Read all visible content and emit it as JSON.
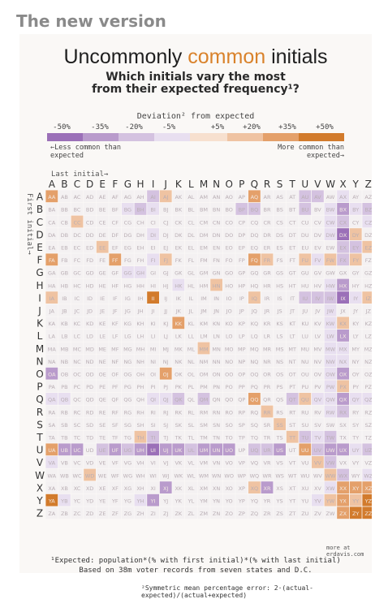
{
  "header": "The new version",
  "title": {
    "pre": "Uncommonly ",
    "highlight": "common",
    "post": " initials"
  },
  "subtitle": [
    "Which initials vary the most",
    "from their expected frequency¹?"
  ],
  "legend": {
    "title": "Deviation² from expected",
    "labels": [
      "-50%",
      "-35%",
      "-20%",
      "-5%",
      "+5%",
      "+20%",
      "+35%",
      "+50%"
    ],
    "less": "←Less common than expected",
    "more": "More common than expected→",
    "colors": [
      "#9b70b8",
      "#b99bcc",
      "#d4c2e0",
      "#e8dff0",
      "#f7e0cf",
      "#efc3a2",
      "#e4a06a",
      "#d27b2c"
    ]
  },
  "axis": {
    "x_title": "Last initial→",
    "y_title": "First initial→",
    "letters": [
      "A",
      "B",
      "C",
      "D",
      "E",
      "F",
      "G",
      "H",
      "I",
      "J",
      "K",
      "L",
      "M",
      "N",
      "O",
      "P",
      "Q",
      "R",
      "S",
      "T",
      "U",
      "V",
      "W",
      "X",
      "Y",
      "Z"
    ]
  },
  "chart_data": {
    "type": "heatmap",
    "title": "Uncommonly common initials",
    "subtitle": "Which initials vary the most from their expected frequency¹?",
    "xlabel": "Last initial",
    "ylabel": "First initial",
    "rows": [
      "A",
      "B",
      "C",
      "D",
      "E",
      "F",
      "G",
      "H",
      "I",
      "J",
      "K",
      "L",
      "M",
      "N",
      "O",
      "P",
      "Q",
      "R",
      "S",
      "T",
      "U",
      "V",
      "W",
      "X",
      "Y",
      "Z"
    ],
    "cols": [
      "A",
      "B",
      "C",
      "D",
      "E",
      "F",
      "G",
      "H",
      "I",
      "J",
      "K",
      "L",
      "M",
      "N",
      "O",
      "P",
      "Q",
      "R",
      "S",
      "T",
      "U",
      "V",
      "W",
      "X",
      "Y",
      "Z"
    ],
    "scale": [
      "-50%",
      "-35%",
      "-20%",
      "-5%",
      "+5%",
      "+20%",
      "+35%",
      "+50%"
    ],
    "values": [
      [
        3,
        0,
        0,
        0,
        0,
        0,
        0,
        0,
        -2,
        2,
        0,
        0,
        0,
        0,
        0,
        0,
        3,
        0,
        0,
        0,
        -2,
        -2,
        0,
        -1,
        0,
        0
      ],
      [
        0,
        0,
        0,
        0,
        0,
        0,
        -1,
        -2,
        -1,
        0,
        0,
        0,
        0,
        0,
        0,
        -2,
        -2,
        0,
        0,
        0,
        -2,
        0,
        -1,
        -3,
        -1,
        -2
      ],
      [
        0,
        0,
        2,
        0,
        0,
        0,
        0,
        0,
        0,
        0,
        0,
        0,
        0,
        0,
        0,
        0,
        0,
        0,
        0,
        0,
        0,
        0,
        -1,
        -2,
        0,
        -1
      ],
      [
        0,
        0,
        0,
        0,
        0,
        0,
        0,
        0,
        -1,
        0,
        0,
        0,
        0,
        0,
        0,
        0,
        0,
        0,
        0,
        0,
        0,
        0,
        -1,
        -4,
        2,
        0
      ],
      [
        0,
        0,
        0,
        0,
        2,
        0,
        0,
        0,
        0,
        0,
        0,
        0,
        0,
        0,
        0,
        0,
        0,
        0,
        0,
        0,
        0,
        0,
        0,
        -2,
        -2,
        2
      ],
      [
        3,
        0,
        0,
        0,
        0,
        3,
        0,
        0,
        -1,
        2,
        0,
        0,
        0,
        0,
        0,
        0,
        3,
        2,
        0,
        0,
        2,
        -1,
        2,
        -2,
        2,
        0
      ],
      [
        0,
        0,
        0,
        0,
        0,
        0,
        -1,
        -1,
        0,
        0,
        0,
        0,
        0,
        0,
        0,
        0,
        0,
        0,
        0,
        0,
        0,
        0,
        0,
        0,
        0,
        0
      ],
      [
        0,
        0,
        0,
        0,
        0,
        0,
        0,
        0,
        0,
        0,
        -1,
        0,
        0,
        2,
        0,
        0,
        0,
        0,
        0,
        0,
        0,
        0,
        -1,
        -3,
        0,
        0
      ],
      [
        2,
        0,
        0,
        0,
        0,
        0,
        0,
        0,
        4,
        0,
        0,
        0,
        0,
        0,
        0,
        0,
        2,
        0,
        0,
        0,
        -2,
        -2,
        -2,
        -4,
        -1,
        2
      ],
      [
        0,
        0,
        0,
        0,
        0,
        0,
        0,
        0,
        0,
        0,
        0,
        0,
        0,
        0,
        0,
        0,
        0,
        0,
        0,
        0,
        0,
        0,
        -1,
        0,
        0,
        0
      ],
      [
        0,
        0,
        0,
        0,
        0,
        0,
        0,
        0,
        0,
        0,
        3,
        0,
        0,
        0,
        0,
        0,
        0,
        0,
        0,
        0,
        0,
        0,
        -1,
        2,
        0,
        0
      ],
      [
        0,
        0,
        0,
        0,
        0,
        0,
        0,
        0,
        0,
        0,
        0,
        0,
        0,
        0,
        0,
        0,
        0,
        0,
        0,
        0,
        0,
        0,
        -1,
        -3,
        0,
        0
      ],
      [
        0,
        0,
        0,
        0,
        0,
        0,
        0,
        0,
        0,
        0,
        0,
        0,
        2,
        0,
        0,
        0,
        0,
        0,
        0,
        0,
        0,
        0,
        -1,
        -1,
        0,
        0
      ],
      [
        0,
        0,
        0,
        0,
        0,
        0,
        0,
        0,
        0,
        0,
        0,
        0,
        0,
        0,
        0,
        0,
        0,
        0,
        0,
        0,
        0,
        0,
        -1,
        -1,
        0,
        0
      ],
      [
        -3,
        0,
        0,
        0,
        0,
        0,
        0,
        0,
        0,
        3,
        0,
        0,
        0,
        0,
        0,
        0,
        0,
        0,
        0,
        0,
        0,
        0,
        -1,
        -3,
        0,
        0
      ],
      [
        0,
        0,
        0,
        0,
        0,
        0,
        0,
        0,
        0,
        0,
        0,
        0,
        0,
        0,
        0,
        0,
        0,
        0,
        0,
        0,
        0,
        0,
        -1,
        2,
        0,
        0
      ],
      [
        -1,
        -1,
        0,
        0,
        0,
        0,
        0,
        0,
        -1,
        -1,
        -2,
        0,
        -2,
        0,
        0,
        0,
        3,
        0,
        0,
        -2,
        2,
        -1,
        -1,
        -3,
        -1,
        -1
      ],
      [
        0,
        0,
        0,
        0,
        0,
        0,
        0,
        0,
        0,
        0,
        0,
        0,
        0,
        0,
        0,
        0,
        0,
        2,
        0,
        0,
        0,
        0,
        -1,
        -2,
        0,
        0
      ],
      [
        0,
        0,
        0,
        0,
        0,
        0,
        0,
        0,
        0,
        0,
        0,
        0,
        0,
        0,
        0,
        0,
        0,
        0,
        2,
        0,
        0,
        0,
        0,
        0,
        0,
        0
      ],
      [
        0,
        0,
        0,
        0,
        0,
        0,
        0,
        2,
        -2,
        0,
        0,
        0,
        0,
        0,
        0,
        0,
        0,
        0,
        0,
        2,
        -2,
        -1,
        -2,
        0,
        0,
        0
      ],
      [
        3,
        -3,
        -3,
        0,
        -2,
        -3,
        -2,
        -3,
        -4,
        -3,
        -3,
        -2,
        -3,
        -3,
        -3,
        0,
        -2,
        -2,
        -3,
        0,
        3,
        -2,
        -3,
        -3,
        -1,
        -2
      ],
      [
        -1,
        0,
        0,
        0,
        0,
        0,
        0,
        0,
        0,
        0,
        0,
        0,
        0,
        0,
        0,
        0,
        0,
        0,
        0,
        0,
        0,
        2,
        -2,
        0,
        0,
        0
      ],
      [
        0,
        0,
        0,
        2,
        0,
        0,
        0,
        0,
        0,
        0,
        0,
        0,
        0,
        0,
        0,
        0,
        0,
        0,
        0,
        0,
        0,
        0,
        2,
        -2,
        0,
        -1
      ],
      [
        0,
        0,
        0,
        0,
        0,
        0,
        0,
        0,
        0,
        -3,
        0,
        0,
        0,
        0,
        0,
        0,
        2,
        -3,
        0,
        0,
        0,
        0,
        -1,
        3,
        3,
        3
      ],
      [
        4,
        -1,
        0,
        0,
        0,
        0,
        0,
        -1,
        -3,
        0,
        0,
        0,
        0,
        0,
        0,
        0,
        0,
        0,
        0,
        0,
        0,
        -1,
        2,
        3,
        2,
        4
      ],
      [
        0,
        0,
        0,
        0,
        0,
        0,
        0,
        0,
        0,
        0,
        0,
        0,
        0,
        0,
        0,
        0,
        0,
        0,
        0,
        0,
        0,
        0,
        0,
        3,
        4,
        4
      ]
    ]
  },
  "footnotes": {
    "source": "more at erdavis.com",
    "f1": "¹Expected: population*(% with first initial)*(% with last initial)",
    "f2": "Based on 38m voter records from seven states and D.C.",
    "f3": "²Symmetric mean percentage error: 2·(actual-expected)/(actual+expected)"
  }
}
